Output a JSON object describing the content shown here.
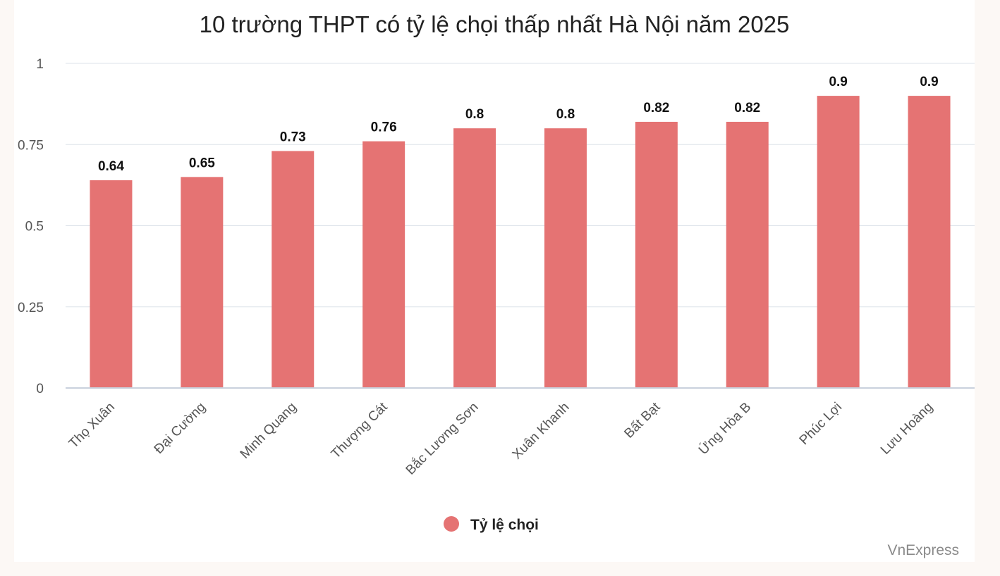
{
  "chart_data": {
    "type": "bar",
    "title": "10 trường THPT có tỷ lệ chọi thấp nhất Hà Nội năm 2025",
    "categories": [
      "Thọ Xuân",
      "Đại Cường",
      "Minh Quang",
      "Thượng Cát",
      "Bắc Lương Sơn",
      "Xuân Khanh",
      "Bất Bạt",
      "Ứng Hòa B",
      "Phúc Lợi",
      "Lưu Hoàng"
    ],
    "series": [
      {
        "name": "Tỷ lệ chọi",
        "values": [
          0.64,
          0.65,
          0.73,
          0.76,
          0.8,
          0.8,
          0.82,
          0.82,
          0.9,
          0.9
        ],
        "color": "#e57373"
      }
    ],
    "ylim": [
      0,
      1
    ],
    "yticks": [
      0,
      0.25,
      0.5,
      0.75,
      1
    ],
    "ytick_labels": [
      "0",
      "0.25",
      "0.5",
      "0.75",
      "1"
    ],
    "data_labels": [
      "0.64",
      "0.65",
      "0.73",
      "0.76",
      "0.8",
      "0.8",
      "0.82",
      "0.82",
      "0.9",
      "0.9"
    ],
    "xlabel": "",
    "ylabel": "",
    "grid": true,
    "legend": "bottom-center"
  },
  "source": "VnExpress",
  "colors": {
    "bar": "#e57373",
    "grid": "#dde3ea",
    "axis": "#c9d1dd"
  }
}
